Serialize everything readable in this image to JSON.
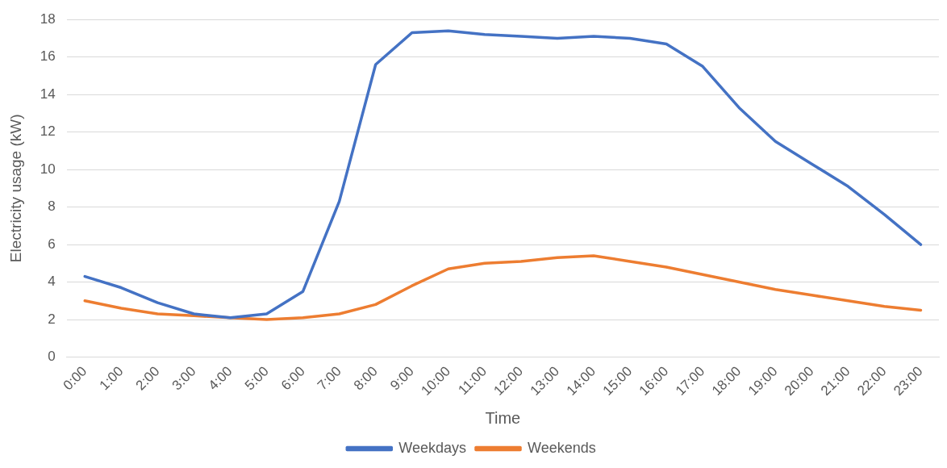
{
  "chart_data": {
    "type": "line",
    "xlabel": "Time",
    "ylabel": "Electricity usage (kW)",
    "categories": [
      "0:00",
      "1:00",
      "2:00",
      "3:00",
      "4:00",
      "5:00",
      "6:00",
      "7:00",
      "8:00",
      "9:00",
      "10:00",
      "11:00",
      "12:00",
      "13:00",
      "14:00",
      "15:00",
      "16:00",
      "17:00",
      "18:00",
      "19:00",
      "20:00",
      "21:00",
      "22:00",
      "23:00"
    ],
    "series": [
      {
        "name": "Weekdays",
        "color": "#4472c4",
        "values": [
          4.3,
          3.7,
          2.9,
          2.3,
          2.1,
          2.3,
          3.5,
          8.3,
          15.6,
          17.3,
          17.4,
          17.2,
          17.1,
          17.0,
          17.1,
          17.0,
          16.7,
          15.5,
          13.3,
          11.5,
          10.3,
          9.1,
          7.6,
          6.0
        ]
      },
      {
        "name": "Weekends",
        "color": "#ed7d31",
        "values": [
          3.0,
          2.6,
          2.3,
          2.2,
          2.1,
          2.0,
          2.1,
          2.3,
          2.8,
          3.8,
          4.7,
          5.0,
          5.1,
          5.3,
          5.4,
          5.1,
          4.8,
          4.4,
          4.0,
          3.6,
          3.3,
          3.0,
          2.7,
          2.5
        ]
      }
    ],
    "ylim": [
      0,
      18
    ],
    "yticks": [
      0,
      2,
      4,
      6,
      8,
      10,
      12,
      14,
      16,
      18
    ],
    "grid": "y",
    "legend": "bottom",
    "marker": "none",
    "line_style": "solid"
  }
}
